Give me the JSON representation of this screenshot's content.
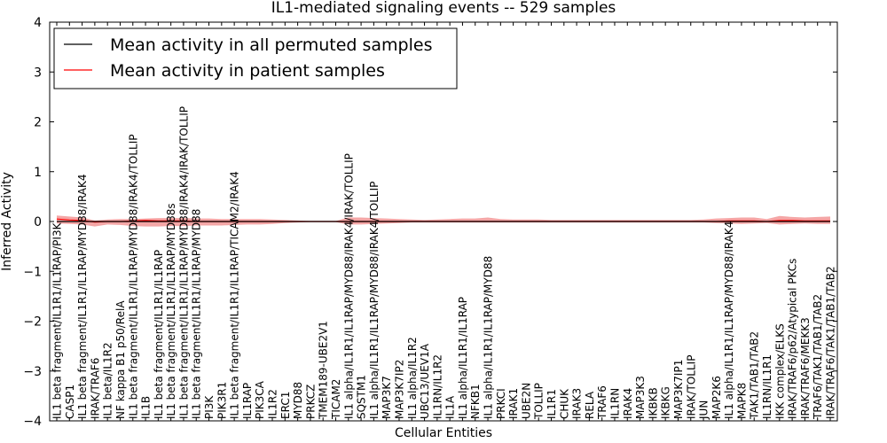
{
  "chart_data": {
    "type": "line",
    "title": "IL1-mediated signaling events -- 529 samples",
    "xlabel": "Cellular Entities",
    "ylabel": "Inferred Activity",
    "ylim": [
      -4,
      4
    ],
    "yticks": [
      -4,
      -3,
      -2,
      -1,
      0,
      1,
      2,
      3,
      4
    ],
    "ytick_labels": [
      "−4",
      "−3",
      "−2",
      "−1",
      "0",
      "1",
      "2",
      "3",
      "4"
    ],
    "legend_position": "top-left",
    "categories": [
      "IL1 beta fragment/IL1R1/IL1RAP/PI3K",
      "CASP1",
      "IL1 beta fragment/IL1R1/IL1RAP/MYD88/IRAK4",
      "IRAK/TRAF6",
      "IL1 beta/IL1R2",
      "NF kappa B1 p50/RelA",
      "IL1 beta fragment/IL1R1/IL1RAP/MYD88/IRAK4/TOLLIP",
      "IL1B",
      "IL1 beta fragment/IL1R1/IL1RAP",
      "IL1 beta fragment/IL1R1/IL1RAP/MYD88s",
      "IL1 beta fragment/IL1R1/IL1RAP/MYD88/IRAK4/IRAK/TOLLIP",
      "IL1 beta fragment/IL1R1/IL1RAP/MYD88",
      "PI3K",
      "PIK3R1",
      "IL1 beta fragment/IL1R1/IL1RAP/TICAM2/IRAK4",
      "IL1RAP",
      "PIK3CA",
      "IL1R2",
      "ERC1",
      "MYD88",
      "PRKCZ",
      "TMEM189-UBE2V1",
      "TICAM2",
      "IL1 alpha/IL1R1/IL1RAP/MYD88/IRAK4/IRAK/TOLLIP",
      "SQSTM1",
      "IL1 alpha/IL1R1/IL1RAP/MYD88/IRAK4/TOLLIP",
      "MAP3K7",
      "MAP3K7IP2",
      "IL1 alpha/IL1R2",
      "UBC13/UEV1A",
      "IL1RN/IL1R2",
      "IL1A",
      "IL1 alpha/IL1R1/IL1RAP",
      "NFKB1",
      "IL1 alpha/IL1R1/IL1RAP/MYD88",
      "PRKCI",
      "IRAK1",
      "UBE2N",
      "TOLLIP",
      "IL1R1",
      "CHUK",
      "IRAK3",
      "RELA",
      "TRAF6",
      "IL1RN",
      "IRAK4",
      "MAP3K3",
      "IKBKB",
      "IKBKG",
      "MAP3K7IP1",
      "IRAK/TOLLIP",
      "JUN",
      "MAP2K6",
      "IL1 alpha/IL1R1/IL1RAP/MYD88/IRAK4",
      "MAPK8",
      "TAK1/TAB1/TAB2",
      "IL1RN/IL1R1",
      "IKK complex/ELKS",
      "IRAK/TRAF6/p62/Atypical PKCs",
      "IRAK/TRAF6/MEKK3",
      "TRAF6/TAK1/TAB1/TAB2",
      "IRAK/TRAF6/TAK1/TAB1/TAB2"
    ],
    "series": [
      {
        "name": "Mean activity in all permuted samples",
        "color": "#000000",
        "values": [
          0.0,
          0.0,
          0.0,
          0.0,
          0.0,
          0.0,
          0.0,
          0.0,
          0.0,
          0.0,
          0.0,
          0.0,
          0.0,
          0.0,
          0.0,
          0.0,
          0.0,
          0.0,
          0.0,
          0.0,
          0.0,
          0.0,
          0.0,
          0.0,
          0.0,
          0.0,
          0.0,
          0.0,
          0.0,
          0.0,
          0.0,
          0.0,
          0.0,
          0.0,
          0.0,
          0.0,
          0.0,
          0.0,
          0.0,
          0.0,
          0.0,
          0.0,
          0.0,
          0.0,
          0.0,
          0.0,
          0.0,
          0.0,
          0.0,
          0.0,
          0.0,
          0.0,
          0.0,
          0.0,
          0.0,
          0.0,
          0.0,
          0.0,
          0.0,
          0.0,
          0.0,
          0.0
        ]
      },
      {
        "name": "Mean activity in patient samples",
        "color": "#ff0000",
        "values": [
          0.05,
          0.03,
          0.02,
          -0.01,
          0.0,
          0.0,
          0.01,
          0.02,
          0.01,
          0.01,
          0.01,
          0.0,
          0.0,
          0.0,
          0.0,
          0.0,
          0.0,
          0.0,
          0.0,
          0.0,
          0.0,
          0.0,
          0.0,
          0.0,
          0.0,
          0.0,
          0.0,
          0.0,
          0.0,
          0.0,
          0.0,
          0.0,
          0.0,
          0.0,
          0.0,
          0.0,
          0.0,
          0.0,
          0.0,
          0.0,
          0.0,
          0.0,
          0.0,
          0.0,
          0.0,
          0.0,
          0.0,
          0.0,
          0.0,
          0.0,
          0.0,
          0.0,
          0.0,
          0.01,
          0.01,
          0.01,
          0.0,
          0.02,
          0.02,
          0.01,
          0.01,
          0.01
        ],
        "band_upper": [
          0.12,
          0.1,
          0.08,
          0.02,
          0.04,
          0.05,
          0.05,
          0.06,
          0.07,
          0.07,
          0.07,
          0.06,
          0.06,
          0.05,
          0.05,
          0.05,
          0.05,
          0.04,
          0.03,
          0.02,
          0.01,
          0.01,
          0.01,
          0.08,
          0.08,
          0.07,
          0.06,
          0.05,
          0.04,
          0.03,
          0.04,
          0.05,
          0.06,
          0.06,
          0.08,
          0.05,
          0.04,
          0.04,
          0.04,
          0.03,
          0.03,
          0.03,
          0.03,
          0.03,
          0.03,
          0.03,
          0.03,
          0.03,
          0.03,
          0.03,
          0.03,
          0.04,
          0.06,
          0.07,
          0.08,
          0.08,
          0.05,
          0.11,
          0.09,
          0.08,
          0.09,
          0.1
        ],
        "band_lower": [
          -0.04,
          -0.05,
          -0.06,
          -0.1,
          -0.06,
          -0.07,
          -0.09,
          -0.1,
          -0.1,
          -0.09,
          -0.09,
          -0.08,
          -0.08,
          -0.08,
          -0.07,
          -0.06,
          -0.06,
          -0.05,
          -0.03,
          -0.02,
          -0.01,
          -0.01,
          -0.01,
          -0.06,
          -0.06,
          -0.05,
          -0.04,
          -0.03,
          -0.02,
          -0.02,
          -0.02,
          -0.02,
          -0.02,
          -0.02,
          -0.02,
          -0.02,
          -0.02,
          -0.02,
          -0.02,
          -0.02,
          -0.02,
          -0.02,
          -0.02,
          -0.02,
          -0.02,
          -0.02,
          -0.02,
          -0.02,
          -0.02,
          -0.02,
          -0.02,
          -0.02,
          -0.03,
          -0.04,
          -0.05,
          -0.04,
          -0.03,
          -0.06,
          -0.05,
          -0.04,
          -0.05,
          -0.05
        ]
      }
    ],
    "band_color": "#f08080"
  }
}
